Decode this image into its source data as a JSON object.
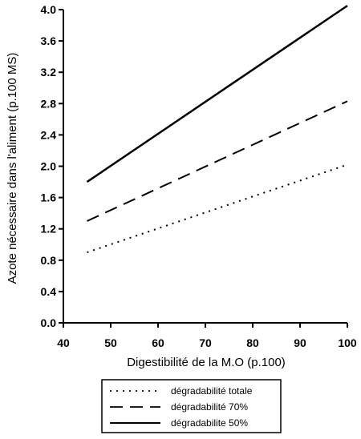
{
  "chart_data": {
    "type": "line",
    "xlabel": "Digestibilité de la M.O (p.100)",
    "ylabel": "Azote nécessaire dans l'aliment (p.100 MS)",
    "xlim": [
      40,
      100
    ],
    "ylim": [
      0.0,
      4.0
    ],
    "xticks": [
      "40",
      "50",
      "60",
      "70",
      "80",
      "90",
      "100"
    ],
    "yticks": [
      "0.0",
      "0.4",
      "0.8",
      "1.2",
      "1.6",
      "2.0",
      "2.4",
      "2.8",
      "3.2",
      "3.6",
      "4.0"
    ],
    "grid": false,
    "legend_position": "bottom",
    "series": [
      {
        "name": "dégradabilité totale",
        "style": "dotted",
        "x": [
          45,
          100
        ],
        "y": [
          0.9,
          2.02
        ]
      },
      {
        "name": "dégradabilité 70%",
        "style": "dashed",
        "x": [
          45,
          100
        ],
        "y": [
          1.3,
          2.83
        ]
      },
      {
        "name": "dégradabilite 50%",
        "style": "solid",
        "x": [
          45,
          100
        ],
        "y": [
          1.8,
          4.05
        ]
      }
    ]
  }
}
